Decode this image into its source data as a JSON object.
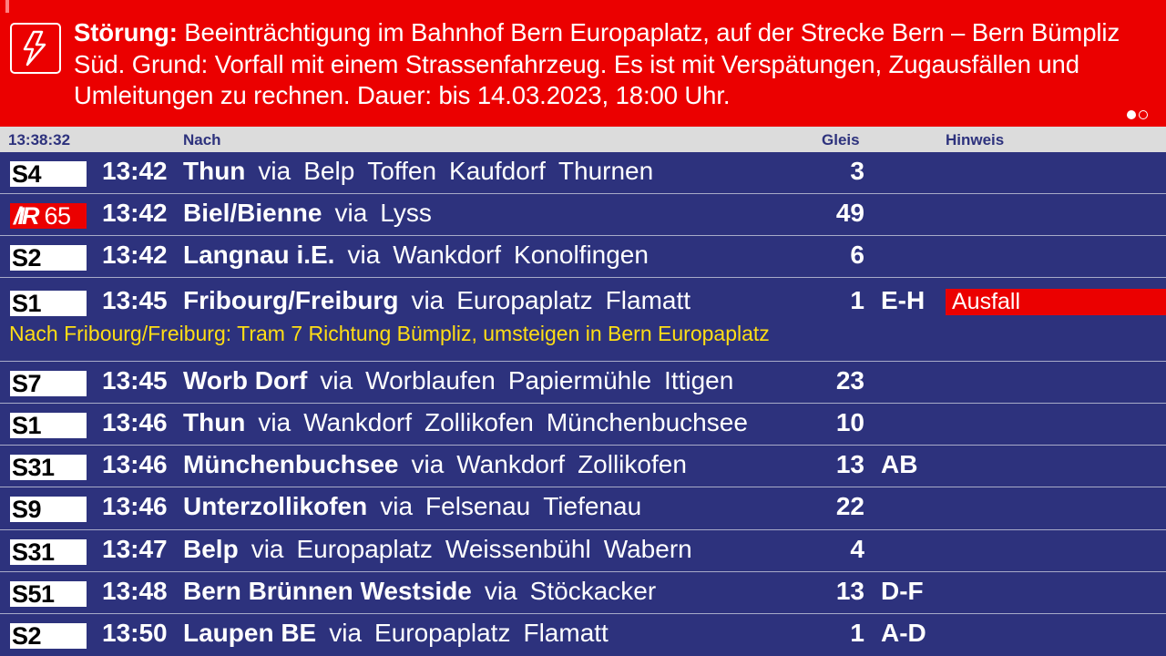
{
  "alert": {
    "icon": "lightning-icon",
    "prefix": "Störung:",
    "message": " Beeinträchtigung im Bahnhof Bern Europaplatz, auf der Strecke Bern – Bern Bümpliz Süd. Grund: Vorfall mit einem Strassenfahrzeug. Es ist mit Verspätungen, Zugausfällen und Umleitungen zu rechnen. Dauer: bis 14.03.2023, 18:00 Uhr.",
    "page_current": 1,
    "page_total": 2
  },
  "header": {
    "clock": "13:38:32",
    "to_label": "Nach",
    "platform_label": "Gleis",
    "notice_label": "Hinweis"
  },
  "departures": [
    {
      "line": "S4",
      "time": "13:42",
      "destination": "Thun",
      "via_label": "via",
      "via": [
        "Belp",
        "Toffen",
        "Kaufdorf",
        "Thurnen"
      ],
      "platform": "3",
      "sector": ""
    },
    {
      "line": "IR 65",
      "line_logo": "IR",
      "line_number": "65",
      "time": "13:42",
      "destination": "Biel/Bienne",
      "via_label": "via",
      "via": [
        "Lyss"
      ],
      "platform": "49",
      "sector": ""
    },
    {
      "line": "S2",
      "time": "13:42",
      "destination": "Langnau i.E.",
      "via_label": "via",
      "via": [
        "Wankdorf",
        "Konolfingen"
      ],
      "platform": "6",
      "sector": ""
    },
    {
      "line": "S1",
      "time": "13:45",
      "destination": "Fribourg/Freiburg",
      "via_label": "via",
      "via": [
        "Europaplatz",
        "Flamatt"
      ],
      "platform": "1",
      "sector": "E-H",
      "notice": "Ausfall",
      "remark": "Nach Fribourg/Freiburg: Tram 7 Richtung Bümpliz, umsteigen in Bern Europaplatz"
    },
    {
      "line": "S7",
      "time": "13:45",
      "destination": "Worb Dorf",
      "via_label": "via",
      "via": [
        "Worblaufen",
        "Papiermühle",
        "Ittigen"
      ],
      "platform": "23",
      "sector": ""
    },
    {
      "line": "S1",
      "time": "13:46",
      "destination": "Thun",
      "via_label": "via",
      "via": [
        "Wankdorf",
        "Zollikofen",
        "Münchenbuchsee"
      ],
      "platform": "10",
      "sector": ""
    },
    {
      "line": "S31",
      "time": "13:46",
      "destination": "Münchenbuchsee",
      "via_label": "via",
      "via": [
        "Wankdorf",
        "Zollikofen"
      ],
      "platform": "13",
      "sector": "AB"
    },
    {
      "line": "S9",
      "time": "13:46",
      "destination": "Unterzollikofen",
      "via_label": "via",
      "via": [
        "Felsenau",
        "Tiefenau"
      ],
      "platform": "22",
      "sector": ""
    },
    {
      "line": "S31",
      "time": "13:47",
      "destination": "Belp",
      "via_label": "via",
      "via": [
        "Europaplatz",
        "Weissenbühl",
        "Wabern"
      ],
      "platform": "4",
      "sector": ""
    },
    {
      "line": "S51",
      "time": "13:48",
      "destination": "Bern Brünnen Westside",
      "via_label": "via",
      "via": [
        "Stöckacker"
      ],
      "platform": "13",
      "sector": "D-F"
    },
    {
      "line": "S2",
      "time": "13:50",
      "destination": "Laupen BE",
      "via_label": "via",
      "via": [
        "Europaplatz",
        "Flamatt"
      ],
      "platform": "1",
      "sector": "A-D"
    }
  ],
  "colors": {
    "background": "#2d327d",
    "alert": "#eb0000",
    "header": "#dcdcdc",
    "remark": "#ffde15",
    "badge": "#ffffff"
  }
}
